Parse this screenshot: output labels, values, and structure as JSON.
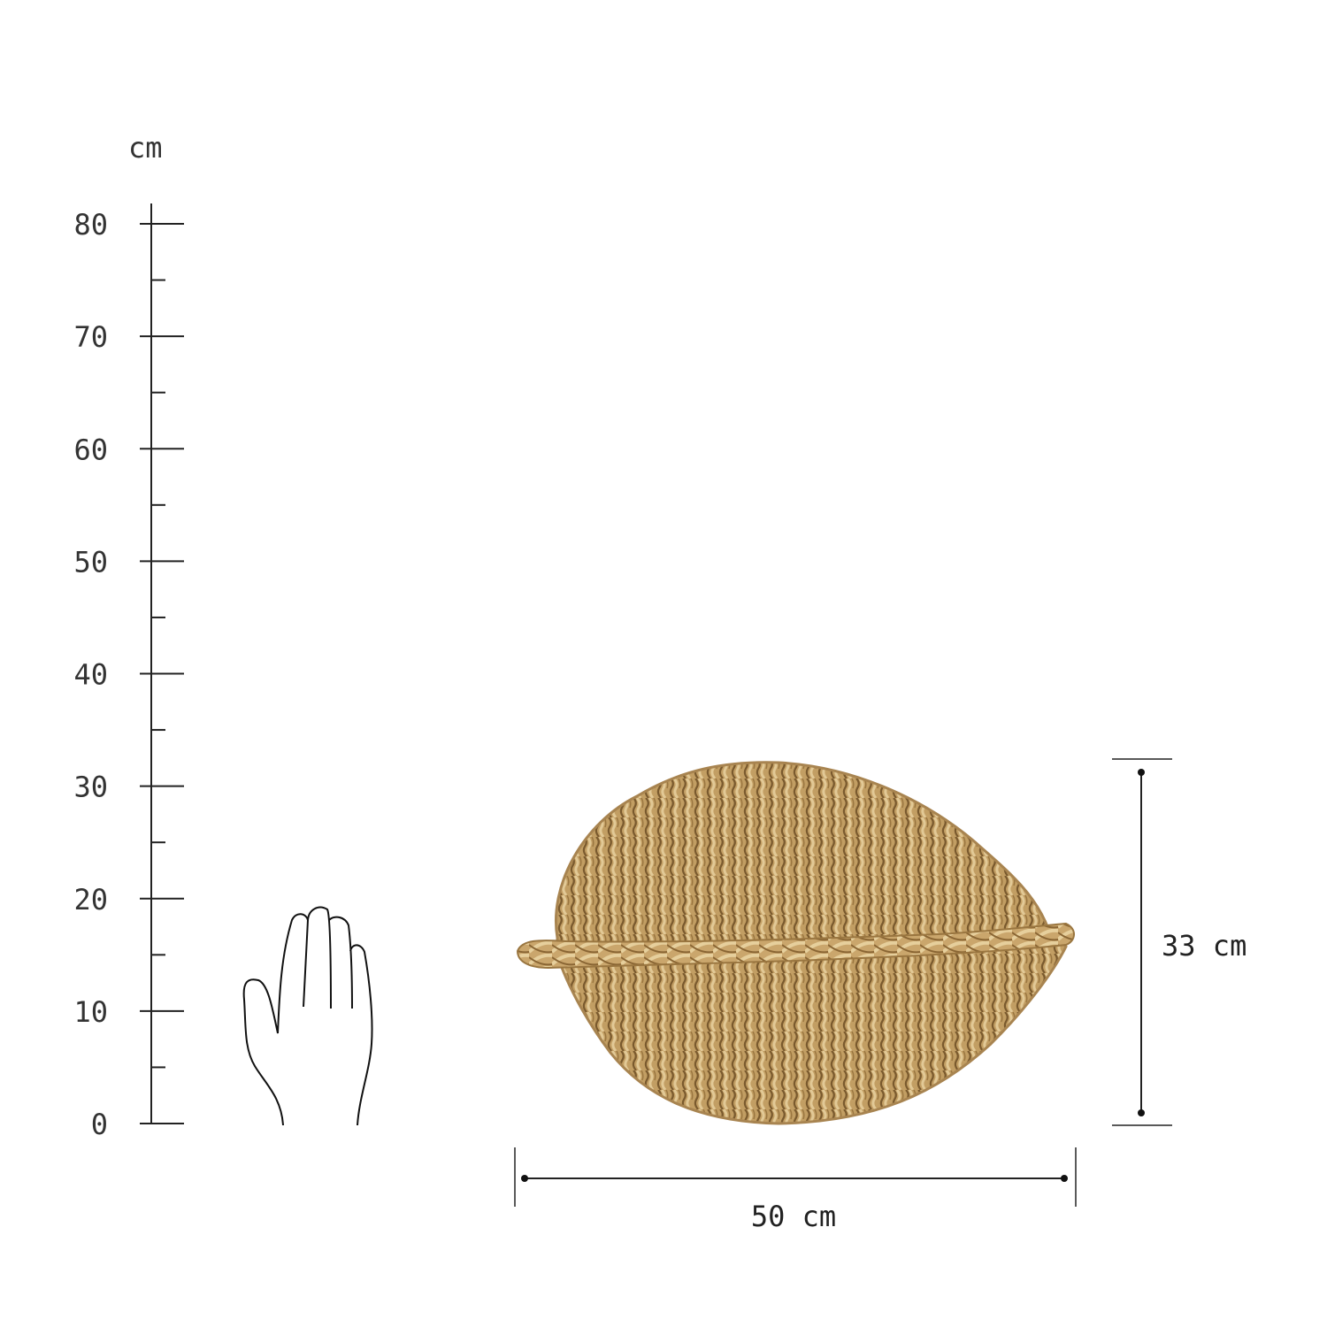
{
  "ruler": {
    "unit": "cm",
    "ticks": [
      "0",
      "10",
      "20",
      "30",
      "40",
      "50",
      "60",
      "70",
      "80"
    ],
    "max": 80,
    "minor_step": 5
  },
  "product": {
    "name_icon": "woven-seagrass-leaf-placemat",
    "colors": {
      "base": "#b8925a",
      "light": "#dcc08a",
      "dark": "#7a5a2e"
    }
  },
  "dimensions": {
    "width_label": "50 cm",
    "height_label": "33 cm"
  },
  "scale_reference": {
    "icon": "hand-outline-icon"
  }
}
